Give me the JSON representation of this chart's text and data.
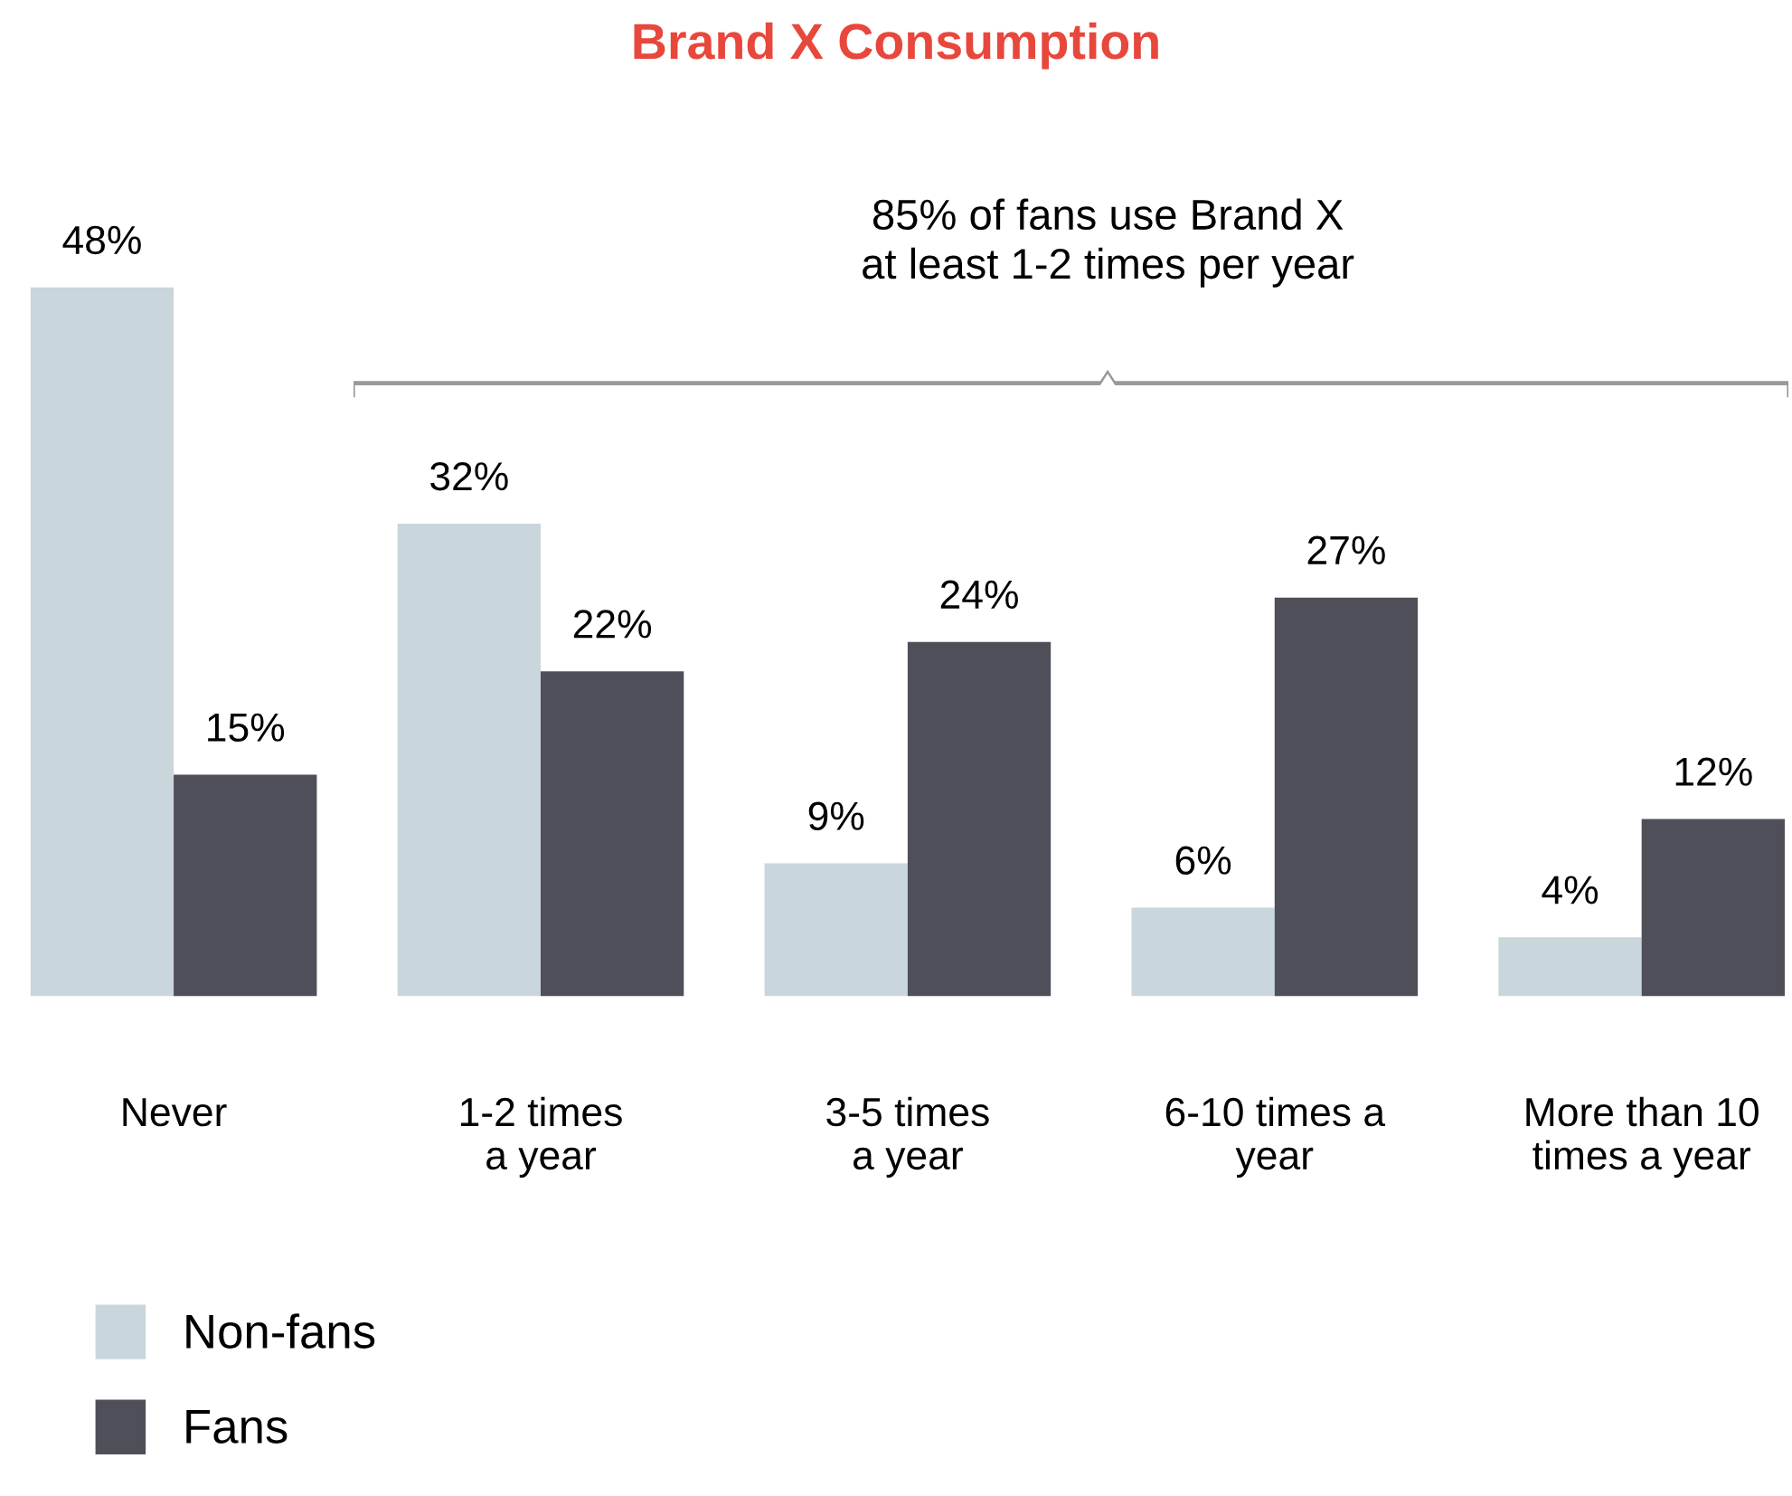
{
  "chart_data": {
    "type": "bar",
    "title": "Brand X Consumption",
    "categories": [
      "Never",
      "1-2 times\na year",
      "3-5 times\na year",
      "6-10 times a\nyear",
      "More than 10\ntimes a year"
    ],
    "series": [
      {
        "name": "Non-fans",
        "color": "#c9d6dc",
        "values": [
          48,
          32,
          9,
          6,
          4
        ],
        "value_labels": [
          "48%",
          "32%",
          "9%",
          "6%",
          "4%"
        ]
      },
      {
        "name": "Fans",
        "color": "#4f4f59",
        "values": [
          15,
          22,
          24,
          27,
          12
        ],
        "value_labels": [
          "15%",
          "22%",
          "24%",
          "27%",
          "12%"
        ]
      }
    ],
    "annotations": [
      "85% of fans use Brand X\nat least 1-2 times per year"
    ],
    "legend": "bottom left",
    "grid": false
  }
}
